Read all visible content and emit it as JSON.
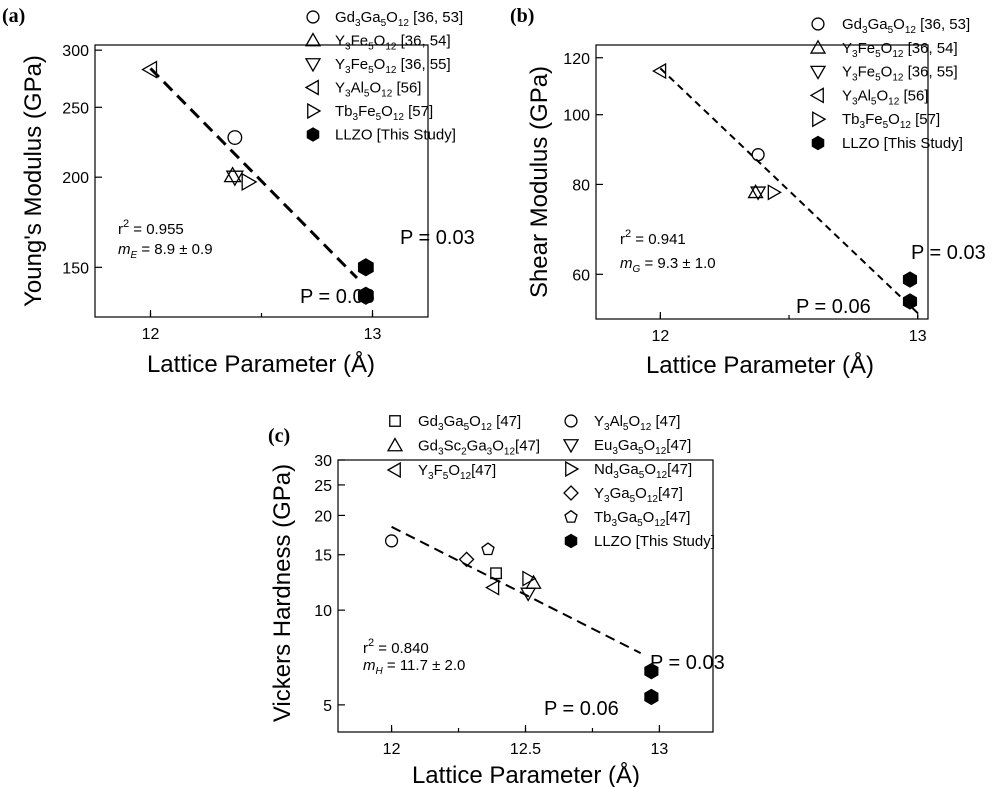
{
  "chart_data": [
    {
      "type": "scatter",
      "panel_label": "(a)",
      "xlabel": "Lattice Parameter (Å)",
      "ylabel": "Young's Modulus (GPa)",
      "x_ticks": [
        "12",
        "13"
      ],
      "y_ticks": [
        "150",
        "200",
        "250",
        "300"
      ],
      "xlim": [
        11.75,
        13.25
      ],
      "ylim": [
        128,
        305
      ],
      "y_scale": "log",
      "legend_position": "top-right",
      "series": [
        {
          "name": "Gd3Ga5O12 [36, 53]",
          "marker": "circle",
          "x": [
            12.38
          ],
          "y": [
            227
          ]
        },
        {
          "name": "Y3Fe5O12 [36, 54]",
          "marker": "triangle-up",
          "x": [
            12.37
          ],
          "y": [
            201
          ]
        },
        {
          "name": "Y3Fe5O12 [36, 55]",
          "marker": "triangle-down",
          "x": [
            12.38
          ],
          "y": [
            200
          ]
        },
        {
          "name": "Y3Al5O12 [56]",
          "marker": "triangle-left",
          "x": [
            12.0
          ],
          "y": [
            282
          ]
        },
        {
          "name": "Tb3Fe5O12 [57]",
          "marker": "triangle-right",
          "x": [
            12.44
          ],
          "y": [
            197
          ]
        },
        {
          "name": "LLZO [This Study]",
          "marker": "hexagon-filled",
          "x": [
            12.97,
            12.97
          ],
          "y": [
            150,
            137
          ]
        }
      ],
      "fit_line": {
        "x": [
          12.0,
          12.93
        ],
        "y": [
          283,
          145
        ]
      },
      "annotations": [
        "r2 = 0.955",
        "mE = 8.9 ± 0.9"
      ],
      "point_labels": [
        "P = 0.03",
        "P = 0.06"
      ]
    },
    {
      "type": "scatter",
      "panel_label": "(b)",
      "xlabel": "Lattice Parameter (Å)",
      "ylabel": "Shear Modulus (GPa)",
      "x_ticks": [
        "12",
        "13"
      ],
      "y_ticks": [
        "60",
        "80",
        "100",
        "120"
      ],
      "xlim": [
        11.75,
        13.04
      ],
      "ylim": [
        52,
        125
      ],
      "y_scale": "log",
      "legend_position": "top-right",
      "series": [
        {
          "name": "Gd3Ga5O12 [36, 53]",
          "marker": "circle",
          "x": [
            12.38
          ],
          "y": [
            88
          ]
        },
        {
          "name": "Y3Fe5O12 [36, 54]",
          "marker": "triangle-up",
          "x": [
            12.37
          ],
          "y": [
            78
          ]
        },
        {
          "name": "Y3Fe5O12 [36, 55]",
          "marker": "triangle-down",
          "x": [
            12.38
          ],
          "y": [
            78
          ]
        },
        {
          "name": "Y3Al5O12 [56]",
          "marker": "triangle-left",
          "x": [
            12.0
          ],
          "y": [
            115
          ]
        },
        {
          "name": "Tb3Fe5O12 [57]",
          "marker": "triangle-right",
          "x": [
            12.44
          ],
          "y": [
            78
          ]
        },
        {
          "name": "LLZO [This Study]",
          "marker": "hexagon-filled",
          "x": [
            12.97,
            12.97
          ],
          "y": [
            59,
            55
          ]
        }
      ],
      "fit_line": {
        "x": [
          12.0,
          13.0
        ],
        "y": [
          116,
          53
        ]
      },
      "annotations": [
        "r2 = 0.941",
        "mG = 9.3 ± 1.0"
      ],
      "point_labels": [
        "P = 0.03",
        "P = 0.06"
      ]
    },
    {
      "type": "scatter",
      "panel_label": "(c)",
      "xlabel": "Lattice Parameter (Å)",
      "ylabel": "Vickers Hardness (GPa)",
      "x_ticks": [
        "12",
        "12.5",
        "13"
      ],
      "y_ticks": [
        "5",
        "10",
        "15",
        "20",
        "25",
        "30"
      ],
      "xlim": [
        11.8,
        13.2
      ],
      "ylim": [
        4.1,
        30
      ],
      "y_scale": "log",
      "legend_position": "top-right",
      "series": [
        {
          "name": "Gd3Ga5O12 [47]",
          "marker": "square",
          "x": [
            12.39
          ],
          "y": [
            13.1
          ]
        },
        {
          "name": "Gd3Sc2Ga3O12[47]",
          "marker": "triangle-up",
          "x": [
            12.53
          ],
          "y": [
            12.2
          ]
        },
        {
          "name": "Y3F5O12[47]",
          "marker": "triangle-left",
          "x": [
            12.38
          ],
          "y": [
            11.8
          ]
        },
        {
          "name": "Y3Al5O12 [47]",
          "marker": "circle",
          "x": [
            12.0
          ],
          "y": [
            16.6
          ]
        },
        {
          "name": "Eu3Ga5O12[47]",
          "marker": "triangle-down",
          "x": [
            12.51
          ],
          "y": [
            11.3
          ]
        },
        {
          "name": "Nd3Ga5O12[47]",
          "marker": "triangle-right",
          "x": [
            12.51
          ],
          "y": [
            12.6
          ]
        },
        {
          "name": "Y3Ga5O12[47]",
          "marker": "diamond",
          "x": [
            12.28
          ],
          "y": [
            14.5
          ]
        },
        {
          "name": "Tb3Ga5O12[47]",
          "marker": "pentagon",
          "x": [
            12.36
          ],
          "y": [
            15.6
          ]
        },
        {
          "name": "LLZO [This Study]",
          "marker": "hexagon-filled",
          "x": [
            12.97,
            12.97
          ],
          "y": [
            6.4,
            5.3
          ]
        }
      ],
      "fit_line": {
        "x": [
          12.0,
          12.93
        ],
        "y": [
          18.4,
          7.3
        ]
      },
      "annotations": [
        "r2 = 0.840",
        "mH = 11.7 ± 2.0"
      ],
      "point_labels": [
        "P = 0.03",
        "P = 0.06"
      ]
    }
  ],
  "legend_display": {
    "a": [
      [
        "Gd",
        "3",
        "Ga",
        "5",
        "O",
        "12",
        " [36, 53]"
      ],
      [
        "Y",
        "3",
        "Fe",
        "5",
        "O",
        "12",
        " [36, 54]"
      ],
      [
        "Y",
        "3",
        "Fe",
        "5",
        "O",
        "12",
        " [36, 55]"
      ],
      [
        "Y",
        "3",
        "Al",
        "5",
        "O",
        "12",
        " [56]"
      ],
      [
        "Tb",
        "3",
        "Fe",
        "5",
        "O",
        "12",
        " [57]"
      ],
      [
        "LLZO [This Study]"
      ]
    ],
    "c": [
      [
        "Gd",
        "3",
        "Ga",
        "5",
        "O",
        "12",
        " [47]"
      ],
      [
        "Gd",
        "3",
        "Sc",
        "2",
        "Ga",
        "3",
        "O",
        "12",
        "[47]"
      ],
      [
        "Y",
        "3",
        "F",
        "5",
        "O",
        "12",
        "[47]"
      ],
      [
        "Y",
        "3",
        "Al",
        "5",
        "O",
        "12",
        " [47]"
      ],
      [
        "Eu",
        "3",
        "Ga",
        "5",
        "O",
        "12",
        "[47]"
      ],
      [
        "Nd",
        "3",
        "Ga",
        "5",
        "O",
        "12",
        "[47]"
      ],
      [
        "Y",
        "3",
        "Ga",
        "5",
        "O",
        "12",
        "[47]"
      ],
      [
        "Tb",
        "3",
        "Ga",
        "5",
        "O",
        "12",
        "[47]"
      ],
      [
        "LLZO [This Study]"
      ]
    ]
  }
}
